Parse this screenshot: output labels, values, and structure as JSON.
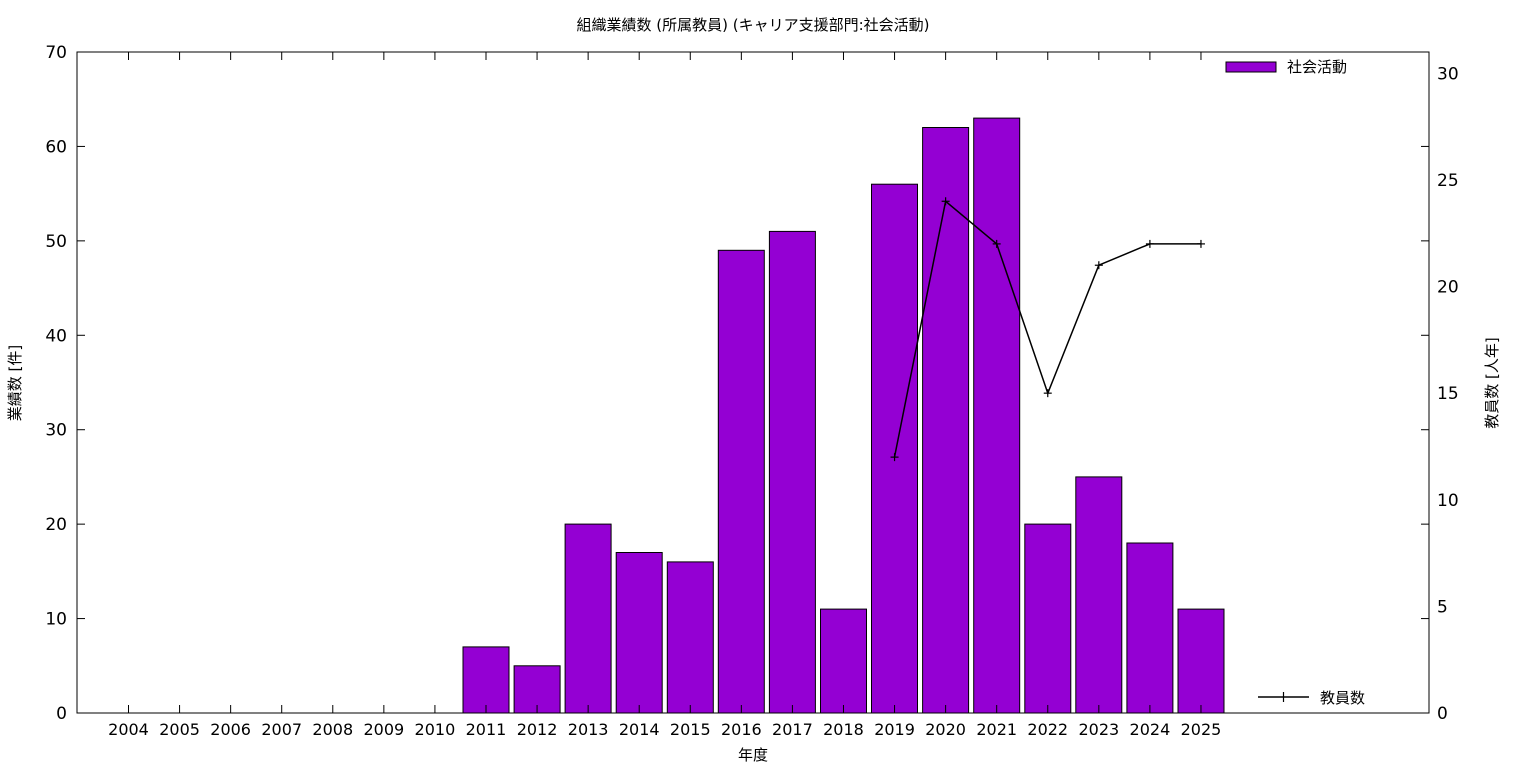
{
  "chart_data": {
    "type": "bar",
    "title": "組織業績数 (所属教員) (キャリア支援部門:社会活動)",
    "xlabel": "年度",
    "ylabel": "業績数 [件]",
    "y2label": "教員数 [人年]",
    "categories": [
      "2004",
      "2005",
      "2006",
      "2007",
      "2008",
      "2009",
      "2010",
      "2011",
      "2012",
      "2013",
      "2014",
      "2015",
      "2016",
      "2017",
      "2018",
      "2019",
      "2020",
      "2021",
      "2022",
      "2023",
      "2024",
      "2025"
    ],
    "ylim": [
      0,
      70
    ],
    "yticks": [
      0,
      10,
      20,
      30,
      40,
      50,
      60,
      70
    ],
    "y2lim": [
      0,
      31
    ],
    "y2ticks": [
      0,
      5,
      10,
      15,
      20,
      25,
      30
    ],
    "grid": false,
    "series": [
      {
        "name": "社会活動",
        "type": "bar",
        "axis": "left",
        "color": "#9400d3",
        "values": [
          null,
          null,
          null,
          null,
          null,
          null,
          null,
          7,
          5,
          20,
          17,
          16,
          49,
          51,
          11,
          56,
          62,
          63,
          20,
          25,
          18,
          11
        ]
      },
      {
        "name": "教員数",
        "type": "line",
        "axis": "right",
        "color": "#000000",
        "values": [
          null,
          null,
          null,
          null,
          null,
          null,
          null,
          null,
          null,
          null,
          null,
          null,
          null,
          null,
          null,
          12,
          24,
          22,
          15,
          21,
          22,
          22
        ]
      }
    ],
    "legend": [
      "top-right",
      "bottom-right"
    ]
  }
}
